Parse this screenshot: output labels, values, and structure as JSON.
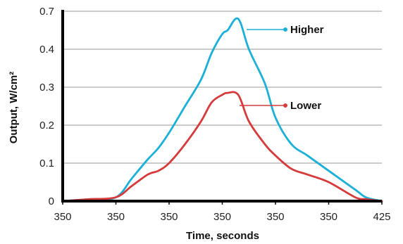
{
  "chart_data": {
    "type": "line",
    "xlabel": "Time, seconds",
    "ylabel": "Output, W/cm²",
    "x_tick_labels": [
      "350",
      "350",
      "350",
      "350",
      "350",
      "350",
      "425"
    ],
    "y_tick_labels": [
      "0",
      "0.1",
      "0.2",
      "0.3",
      "0.4",
      "0.7"
    ],
    "grid": true,
    "series": [
      {
        "name": "Higher",
        "color": "#1ab0d8",
        "x": [
          0,
          0.5,
          1,
          1.3,
          1.6,
          1.8,
          2.0,
          2.3,
          2.6,
          2.8,
          3.0,
          3.1,
          3.3,
          3.5,
          3.8,
          4.0,
          4.3,
          4.6,
          5.0,
          5.5,
          5.7,
          6.0
        ],
        "values": [
          0,
          0.005,
          0.01,
          0.06,
          0.11,
          0.14,
          0.18,
          0.25,
          0.32,
          0.39,
          0.44,
          0.45,
          0.48,
          0.4,
          0.31,
          0.22,
          0.15,
          0.12,
          0.08,
          0.03,
          0.01,
          0.0
        ]
      },
      {
        "name": "Lower",
        "color": "#d63a3a",
        "x": [
          0,
          0.5,
          1,
          1.3,
          1.6,
          1.8,
          2.0,
          2.3,
          2.6,
          2.8,
          3.0,
          3.1,
          3.3,
          3.5,
          3.8,
          4.0,
          4.3,
          4.6,
          5.0,
          5.5,
          5.7,
          6.0
        ],
        "values": [
          0,
          0.005,
          0.01,
          0.04,
          0.07,
          0.08,
          0.1,
          0.15,
          0.21,
          0.26,
          0.28,
          0.285,
          0.28,
          0.21,
          0.15,
          0.12,
          0.085,
          0.07,
          0.05,
          0.01,
          0.005,
          0.0
        ]
      }
    ]
  }
}
